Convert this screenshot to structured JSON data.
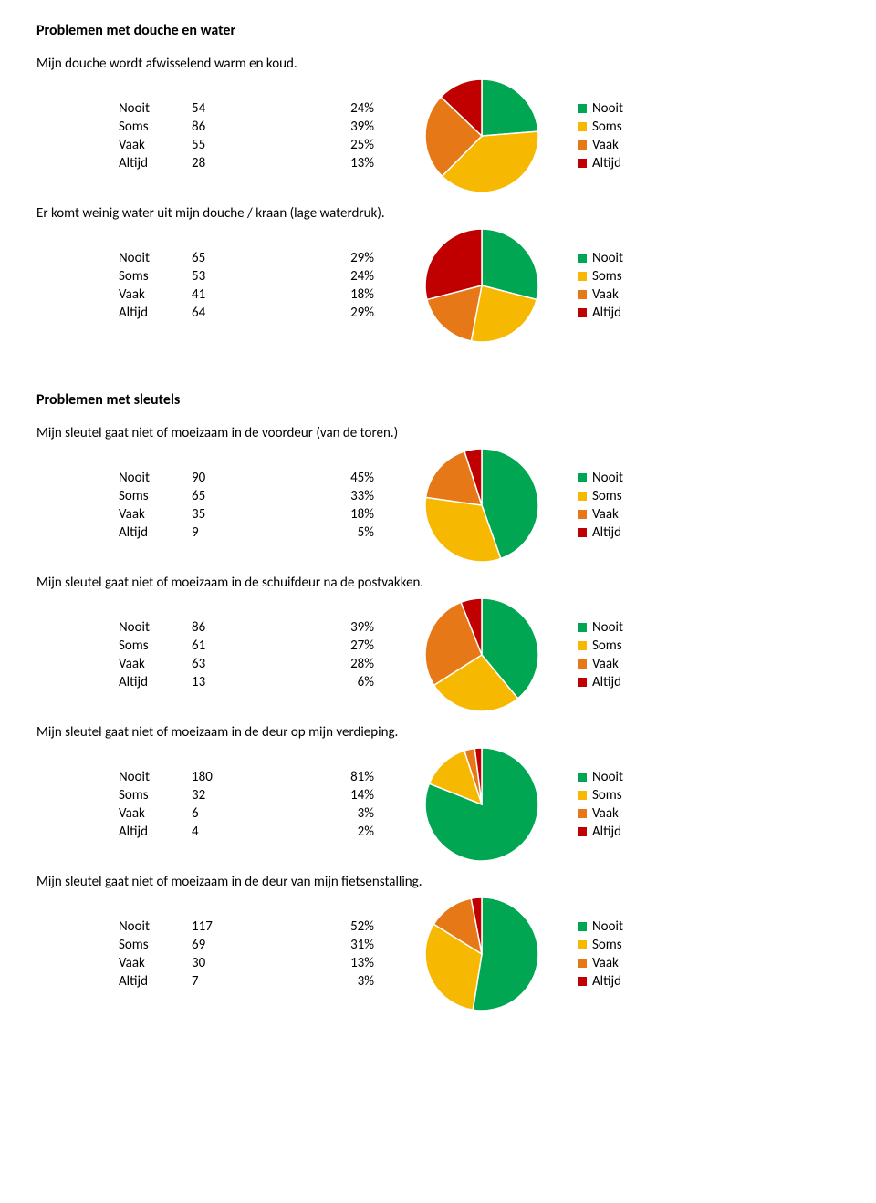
{
  "colors": {
    "nooit": "#00a651",
    "soms": "#f6b800",
    "vaak": "#e67817",
    "altijd": "#c00000",
    "white": "#ffffff"
  },
  "legend_labels": [
    "Nooit",
    "Soms",
    "Vaak",
    "Altijd"
  ],
  "row_labels": [
    "Nooit",
    "Soms",
    "Vaak",
    "Altijd"
  ],
  "pie": {
    "radius": 62
  },
  "sections": [
    {
      "heading": "Problemen met douche en water",
      "questions": [
        {
          "text": "Mijn douche wordt afwisselend warm en koud.",
          "counts": [
            54,
            86,
            55,
            28
          ],
          "percents": [
            "24%",
            "39%",
            "25%",
            "13%"
          ],
          "pie_values": [
            24,
            39,
            25,
            13
          ]
        },
        {
          "text": "Er komt weinig water uit mijn douche / kraan (lage waterdruk).",
          "counts": [
            65,
            53,
            41,
            64
          ],
          "percents": [
            "29%",
            "24%",
            "18%",
            "29%"
          ],
          "pie_values": [
            29,
            24,
            18,
            29
          ]
        }
      ]
    },
    {
      "heading": "Problemen met sleutels",
      "questions": [
        {
          "text": "Mijn sleutel gaat niet of moeizaam in de voordeur (van de toren.)",
          "counts": [
            90,
            65,
            35,
            9
          ],
          "percents": [
            "45%",
            "33%",
            "18%",
            "5%"
          ],
          "pie_values": [
            45,
            33,
            18,
            5
          ]
        },
        {
          "text": "Mijn sleutel gaat niet of moeizaam in de schuifdeur na de postvakken.",
          "counts": [
            86,
            61,
            63,
            13
          ],
          "percents": [
            "39%",
            "27%",
            "28%",
            "6%"
          ],
          "pie_values": [
            39,
            27,
            28,
            6
          ]
        },
        {
          "text": "Mijn sleutel gaat niet of moeizaam in de deur op mijn verdieping.",
          "counts": [
            180,
            32,
            6,
            4
          ],
          "percents": [
            "81%",
            "14%",
            "3%",
            "2%"
          ],
          "pie_values": [
            81,
            14,
            3,
            2
          ]
        },
        {
          "text": "Mijn sleutel gaat niet of moeizaam in de deur van mijn fietsenstalling.",
          "counts": [
            117,
            69,
            30,
            7
          ],
          "percents": [
            "52%",
            "31%",
            "13%",
            "3%"
          ],
          "pie_values": [
            52,
            31,
            13,
            3
          ]
        }
      ]
    }
  ]
}
